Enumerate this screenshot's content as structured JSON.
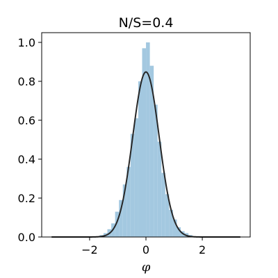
{
  "chart_data": {
    "type": "bar",
    "title": "N/S=0.4",
    "xlabel": "φ",
    "ylabel": "",
    "xlim": [
      -3.7,
      3.7
    ],
    "ylim": [
      0,
      1.05
    ],
    "xticks": [
      -2,
      0,
      2
    ],
    "xtick_labels": [
      "−2",
      "0",
      "2"
    ],
    "yticks": [
      0.0,
      0.2,
      0.4,
      0.6,
      0.8,
      1.0
    ],
    "ytick_labels": [
      "0.0",
      "0.2",
      "0.4",
      "0.6",
      "0.8",
      "1.0"
    ],
    "grid": false,
    "histogram": {
      "bin_width": 0.137,
      "bin_centers": [
        -1.574,
        -1.437,
        -1.3,
        -1.163,
        -1.026,
        -0.889,
        -0.752,
        -0.615,
        -0.478,
        -0.341,
        -0.204,
        -0.067,
        0.07,
        0.207,
        0.344,
        0.481,
        0.618,
        0.755,
        0.892,
        1.029,
        1.166,
        1.303,
        1.44,
        1.577
      ],
      "densities": [
        0.01,
        0.02,
        0.04,
        0.07,
        0.13,
        0.19,
        0.27,
        0.36,
        0.53,
        0.61,
        0.8,
        0.97,
        1.0,
        0.88,
        0.68,
        0.49,
        0.33,
        0.22,
        0.14,
        0.09,
        0.05,
        0.03,
        0.02,
        0.01
      ],
      "color": "#a3c8e0"
    },
    "density_curve": {
      "x_range": [
        -3.35,
        3.35
      ],
      "mean": 0.0,
      "std": 0.47,
      "peak": 0.848,
      "color": "#262626"
    }
  }
}
